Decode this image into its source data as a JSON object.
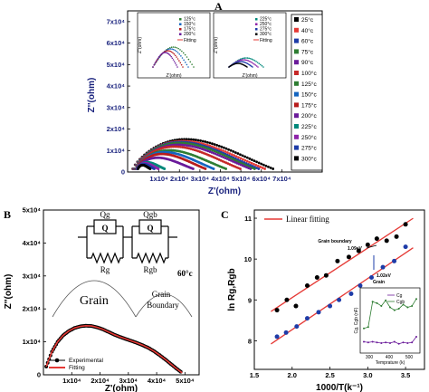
{
  "panels": {
    "A": {
      "label": "A",
      "xlabel": "Z'(ohm)",
      "ylabel": "Z''(ohm)"
    },
    "B": {
      "label": "B",
      "xlabel": "Z'(ohm)",
      "ylabel": "Z''(ohm)",
      "temp": "60°c",
      "grain": "Grain",
      "grain_boundary_1": "Grain",
      "grain_boundary_2": "Boundary",
      "Qg": "Qg",
      "Qgb": "Qgb",
      "Rg": "Rg",
      "Rgb": "Rgb"
    },
    "C": {
      "label": "C",
      "xlabel": "1000/T(k⁻¹)",
      "ylabel": "ln Rg,Rgb",
      "ann_gb": "Grain boundary",
      "ann_gb_ev": "1.09eV",
      "ann_g_ev": "1.02eV",
      "ann_g": "Grain",
      "legend_fit": "Linear fitting",
      "inset_xlabel": "Temprature (k)",
      "inset_ylabel": "Cg, Cgb (nF)"
    }
  },
  "colors": {
    "axis_blue": "#1a237e",
    "fit_red": "#e53935",
    "green": "#2e7d32",
    "purple": "#6a1b9a",
    "blue": "#1e3ca8"
  },
  "chart_data": [
    {
      "type": "scatter",
      "panel": "A",
      "xlabel": "Z'(ohm)",
      "ylabel": "Z''(ohm)",
      "xlim": [
        0,
        80000
      ],
      "ylim": [
        0,
        75000
      ],
      "xticks": [
        "1x10⁴",
        "2x10⁴",
        "3x10⁴",
        "4x10⁴",
        "5x10⁴",
        "6x10⁴",
        "7x10⁴"
      ],
      "yticks": [
        "0",
        "1x10⁴",
        "2x10⁴",
        "3x10⁴",
        "4x10⁴",
        "5x10⁴",
        "6x10⁴",
        "7x10⁴"
      ],
      "legend": [
        "25°c",
        "40°c",
        "60°c",
        "75°c",
        "90°c",
        "100°c",
        "125°c",
        "150°c",
        "175°c",
        "200°c",
        "225°c",
        "250°c",
        "275°c",
        "300°c"
      ],
      "series": [
        {
          "name": "25°c",
          "color": "#000000",
          "rmax": 71000,
          "peak": 16000
        },
        {
          "name": "40°c",
          "color": "#e53935",
          "rmax": 67000,
          "peak": 15000
        },
        {
          "name": "60°c",
          "color": "#1e3ca8",
          "rmax": 64000,
          "peak": 14500
        },
        {
          "name": "75°c",
          "color": "#2e7d32",
          "rmax": 62000,
          "peak": 14000
        },
        {
          "name": "90°c",
          "color": "#6a1b9a",
          "rmax": 60000,
          "peak": 13000
        },
        {
          "name": "100°c",
          "color": "#c62828",
          "rmax": 55000,
          "peak": 12000
        },
        {
          "name": "125°c",
          "color": "#2e7d32",
          "rmax": 48000,
          "peak": 10000
        },
        {
          "name": "150°c",
          "color": "#1565c0",
          "rmax": 42000,
          "peak": 9000
        },
        {
          "name": "175°c",
          "color": "#b71c1c",
          "rmax": 38000,
          "peak": 8000
        },
        {
          "name": "200°c",
          "color": "#6a1b9a",
          "rmax": 32000,
          "peak": 6000
        },
        {
          "name": "225°c",
          "color": "#00897b",
          "rmax": 18000,
          "peak": 3500
        },
        {
          "name": "250°c",
          "color": "#8e24aa",
          "rmax": 15000,
          "peak": 3000
        },
        {
          "name": "275°c",
          "color": "#1e3ca8",
          "rmax": 13000,
          "peak": 2500
        },
        {
          "name": "300°c",
          "color": "#000000",
          "rmax": 11000,
          "peak": 2000
        }
      ],
      "insets": [
        {
          "legend": [
            "125°c",
            "150°c",
            "175°c",
            "200°c"
          ],
          "fit": "Fitting",
          "xlabel": "Z'(ohm)",
          "ylabel": "Z''(ohm)"
        },
        {
          "legend": [
            "225°c",
            "250°c",
            "275°c",
            "300°c"
          ],
          "fit": "Fitting",
          "xlabel": "Z'(ohm)",
          "ylabel": "Z''(ohm)"
        }
      ]
    },
    {
      "type": "scatter",
      "panel": "B",
      "xlabel": "Z'(ohm)",
      "ylabel": "Z''(ohm)",
      "xlim": [
        0,
        55000
      ],
      "ylim": [
        0,
        50000
      ],
      "xticks": [
        "1x10⁴",
        "2x10⁴",
        "3x10⁴",
        "4x10⁴",
        "5x10⁴"
      ],
      "yticks": [
        "0",
        "1x10⁴",
        "2x10⁴",
        "3x10⁴",
        "4x10⁴",
        "5x10⁴"
      ],
      "series": [
        {
          "name": "Experimental",
          "color": "#000000"
        },
        {
          "name": "Fitting",
          "color": "#e53935"
        }
      ],
      "x": [
        1000,
        3000,
        5000,
        7000,
        9000,
        11000,
        13000,
        15000,
        17000,
        19000,
        21000,
        23000,
        25000,
        27000,
        29000,
        31000,
        33000,
        35000,
        37000,
        39000,
        41000,
        43000,
        45000,
        47000,
        49000
      ],
      "y": [
        2500,
        7000,
        10000,
        12000,
        13300,
        14200,
        14700,
        14900,
        14800,
        14400,
        13800,
        13000,
        12200,
        11500,
        10900,
        10300,
        9700,
        9000,
        8200,
        7200,
        6000,
        4700,
        3300,
        1900,
        600
      ]
    },
    {
      "type": "scatter",
      "panel": "C",
      "xlabel": "1000/T(k⁻¹)",
      "ylabel": "ln Rg,Rgb",
      "xlim": [
        1.5,
        3.75
      ],
      "ylim": [
        7.3,
        11.2
      ],
      "xticks": [
        "1.5",
        "2.0",
        "2.5",
        "3.0",
        "3.5"
      ],
      "yticks": [
        "8",
        "9",
        "10",
        "11"
      ],
      "series": [
        {
          "name": "Grain boundary",
          "color": "#000000",
          "x": [
            1.8,
            1.93,
            2.05,
            2.2,
            2.33,
            2.45,
            2.6,
            2.75,
            2.88,
            3.0,
            3.12,
            3.25,
            3.38,
            3.5
          ],
          "y": [
            8.75,
            9.0,
            8.85,
            9.35,
            9.55,
            9.6,
            9.95,
            10.05,
            10.2,
            10.35,
            10.5,
            10.45,
            10.55,
            10.85
          ]
        },
        {
          "name": "Grain",
          "color": "#1e3ca8",
          "x": [
            1.8,
            1.92,
            2.06,
            2.2,
            2.35,
            2.5,
            2.62,
            2.78,
            2.9,
            3.05,
            3.2,
            3.35,
            3.5
          ],
          "y": [
            8.1,
            8.2,
            8.35,
            8.55,
            8.7,
            8.85,
            9.0,
            9.15,
            9.35,
            9.55,
            9.8,
            9.95,
            10.3
          ]
        },
        {
          "name": "Linear fitting",
          "color": "#e53935"
        }
      ],
      "inset": {
        "xlabel": "Temprature (k)",
        "ylabel": "Cg, Cgb (nF)",
        "legend": [
          "Cg",
          "Cgb"
        ],
        "xticks": [
          "300",
          "400",
          "500"
        ],
        "cg": [
          0.55,
          0.5,
          0.55,
          0.5,
          0.45,
          0.5,
          0.45,
          0.55,
          0.4,
          0.5,
          0.45,
          0.5,
          0.9
        ],
        "cgb": [
          1.5,
          1.6,
          3.4,
          3.3,
          3.1,
          3.5,
          3.0,
          2.8,
          2.9,
          3.2,
          3.0,
          3.1,
          3.6
        ]
      }
    }
  ]
}
